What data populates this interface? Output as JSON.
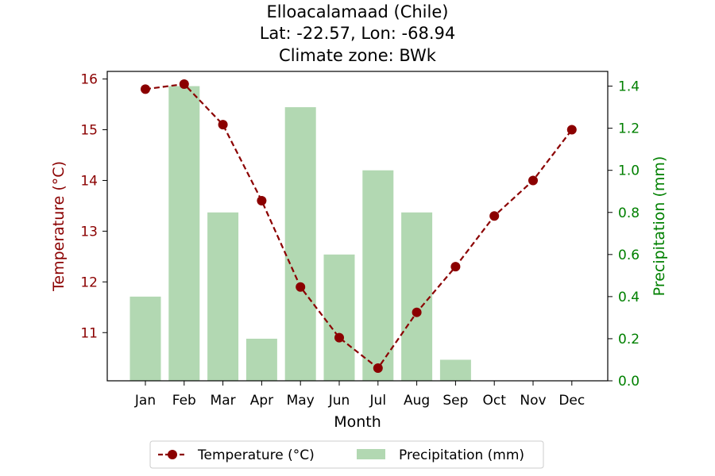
{
  "chart_data": {
    "type": "bar+line",
    "title_lines": [
      "Elloacalamaad (Chile)",
      "Lat: -22.57, Lon: -68.94",
      "Climate zone: BWk"
    ],
    "xlabel": "Month",
    "y_left_label": "Temperature (°C)",
    "y_right_label": "Precipitation (mm)",
    "categories": [
      "Jan",
      "Feb",
      "Mar",
      "Apr",
      "May",
      "Jun",
      "Jul",
      "Aug",
      "Sep",
      "Oct",
      "Nov",
      "Dec"
    ],
    "temperature": {
      "name": "Temperature (°C)",
      "values": [
        15.8,
        15.9,
        15.1,
        13.6,
        11.9,
        10.9,
        10.3,
        11.4,
        12.3,
        13.3,
        14.0,
        15.0
      ],
      "color": "#8b0000",
      "style": "dashed line with circle markers"
    },
    "precipitation": {
      "name": "Precipitation (mm)",
      "values": [
        0.4,
        1.4,
        0.8,
        0.2,
        1.3,
        0.6,
        1.0,
        0.8,
        0.1,
        0.0,
        0.0,
        0.0
      ],
      "color": "#b2d8b2"
    },
    "y_left_range": [
      10.05,
      16.15
    ],
    "y_left_ticks": [
      "11",
      "12",
      "13",
      "14",
      "15",
      "16"
    ],
    "y_right_range": [
      0.0,
      1.47
    ],
    "y_right_ticks": [
      "0.0",
      "0.2",
      "0.4",
      "0.6",
      "0.8",
      "1.0",
      "1.2",
      "1.4"
    ],
    "left_axis_color": "#8b0000",
    "right_axis_color": "#008000",
    "grid": false,
    "legend_placement": "bottom-center"
  }
}
